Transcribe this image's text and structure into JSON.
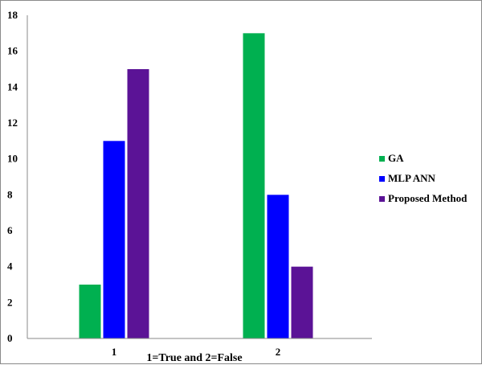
{
  "chart_data": {
    "type": "bar",
    "categories": [
      "1",
      "2"
    ],
    "series": [
      {
        "name": "GA",
        "values": [
          3,
          17
        ],
        "color": "#00b050"
      },
      {
        "name": "MLP ANN",
        "values": [
          11,
          8
        ],
        "color": "#0000ff"
      },
      {
        "name": "Proposed Method",
        "values": [
          15,
          4
        ],
        "color": "#5b1396"
      }
    ],
    "title": "",
    "xlabel": "1=True and 2=False",
    "ylabel": "",
    "ylim": [
      0,
      18
    ],
    "yticks": [
      "0",
      "2",
      "4",
      "6",
      "8",
      "10",
      "12",
      "14",
      "16",
      "18"
    ],
    "grid": false,
    "legend_position": "right"
  }
}
